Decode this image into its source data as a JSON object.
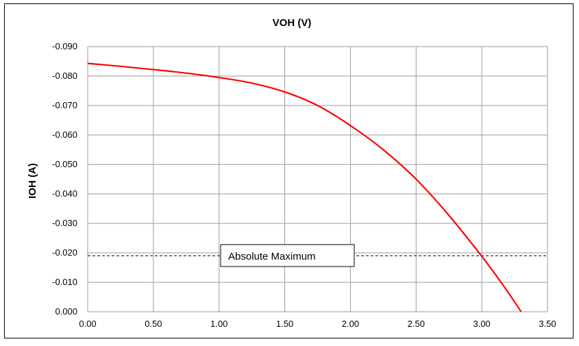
{
  "chart_data": {
    "type": "line",
    "title": "VOH (V)",
    "xlabel": "",
    "ylabel": "IOH (A)",
    "xlim": [
      0,
      3.5
    ],
    "ylim": [
      0,
      -0.09
    ],
    "grid": true,
    "x_ticks": [
      "0.00",
      "0.50",
      "1.00",
      "1.50",
      "2.00",
      "2.50",
      "3.00",
      "3.50"
    ],
    "y_ticks": [
      "0.000",
      "-0.010",
      "-0.020",
      "-0.030",
      "-0.040",
      "-0.050",
      "-0.060",
      "-0.070",
      "-0.080",
      "-0.090"
    ],
    "series": [
      {
        "color": "#ff0000",
        "x": [
          0.0,
          0.25,
          0.5,
          0.75,
          1.0,
          1.25,
          1.5,
          1.75,
          2.0,
          2.25,
          2.5,
          2.75,
          3.0,
          3.15,
          3.3
        ],
        "y": [
          -0.0843,
          -0.0833,
          -0.0822,
          -0.081,
          -0.0795,
          -0.0776,
          -0.0746,
          -0.07,
          -0.0632,
          -0.055,
          -0.045,
          -0.0327,
          -0.0188,
          -0.0098,
          0.0
        ]
      }
    ],
    "reference_line": {
      "y": -0.019,
      "style": "dashed",
      "color": "#000000"
    },
    "annotation": {
      "text": "Absolute Maximum"
    }
  }
}
